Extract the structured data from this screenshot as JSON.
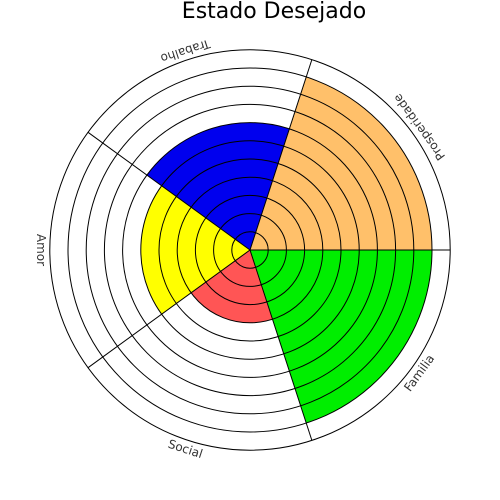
{
  "chart_data": {
    "type": "polar-area",
    "title": "Estado Desejado",
    "categories": [
      "Familia",
      "Social",
      "Amor",
      "Trabalho",
      "Prosperidade"
    ],
    "values": [
      10,
      4,
      6,
      7,
      10
    ],
    "max": 11,
    "colors": [
      "#00ee00",
      "#ff5555",
      "#ffff00",
      "#0000ee",
      "#ffc06a"
    ],
    "grid": true
  }
}
